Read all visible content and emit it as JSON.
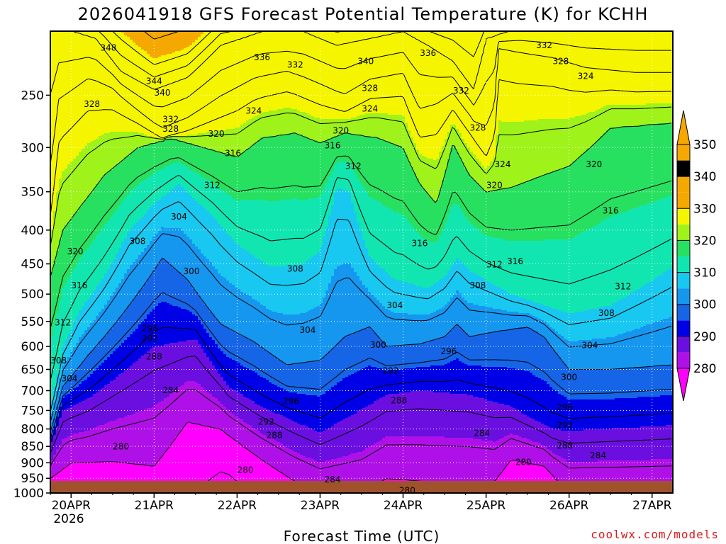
{
  "chart_data": {
    "type": "heatmap",
    "title": "2026041918 GFS Forecast Potential Temperature (K) for KCHH",
    "xlabel": "Forecast Time (UTC)",
    "ylabel": "",
    "x_ticks": [
      "20APR",
      "21APR",
      "22APR",
      "23APR",
      "24APR",
      "25APR",
      "26APR",
      "27APR"
    ],
    "x_year_label": "2026",
    "y_ticks": [
      250,
      300,
      350,
      400,
      450,
      500,
      550,
      600,
      650,
      700,
      750,
      800,
      850,
      900,
      950,
      1000
    ],
    "y_scale": "log",
    "ylim": [
      1000,
      200
    ],
    "xlim_days": [
      19.75,
      27.25
    ],
    "colorbar": {
      "levels": [
        280,
        290,
        300,
        310,
        320,
        330,
        340,
        350
      ],
      "colors": [
        "#ff00ff",
        "#b010e8",
        "#6a0fe0",
        "#0000e6",
        "#1565e6",
        "#1597f0",
        "#18c8f0",
        "#12e6b0",
        "#28e060",
        "#9ff21a",
        "#f5f500",
        "#f5a800"
      ],
      "extend": "both"
    },
    "contour_interval": 4,
    "contour_labels": [
      {
        "value": 348,
        "day": 20.45,
        "p": 212
      },
      {
        "value": 344,
        "day": 21.0,
        "p": 238
      },
      {
        "value": 340,
        "day": 21.1,
        "p": 248
      },
      {
        "value": 336,
        "day": 22.3,
        "p": 219
      },
      {
        "value": 332,
        "day": 22.7,
        "p": 225
      },
      {
        "value": 340,
        "day": 23.55,
        "p": 222
      },
      {
        "value": 336,
        "day": 24.3,
        "p": 216
      },
      {
        "value": 332,
        "day": 25.7,
        "p": 210
      },
      {
        "value": 328,
        "day": 25.9,
        "p": 222
      },
      {
        "value": 324,
        "day": 26.2,
        "p": 234
      },
      {
        "value": 328,
        "day": 20.25,
        "p": 258
      },
      {
        "value": 332,
        "day": 21.2,
        "p": 272
      },
      {
        "value": 328,
        "day": 21.2,
        "p": 281
      },
      {
        "value": 324,
        "day": 22.2,
        "p": 264
      },
      {
        "value": 328,
        "day": 23.6,
        "p": 244
      },
      {
        "value": 324,
        "day": 23.6,
        "p": 262
      },
      {
        "value": 332,
        "day": 24.7,
        "p": 246
      },
      {
        "value": 328,
        "day": 24.9,
        "p": 280
      },
      {
        "value": 320,
        "day": 21.75,
        "p": 286
      },
      {
        "value": 320,
        "day": 23.25,
        "p": 283
      },
      {
        "value": 316,
        "day": 21.95,
        "p": 306
      },
      {
        "value": 316,
        "day": 23.15,
        "p": 298
      },
      {
        "value": 312,
        "day": 23.4,
        "p": 320
      },
      {
        "value": 324,
        "day": 25.2,
        "p": 318
      },
      {
        "value": 320,
        "day": 25.1,
        "p": 342
      },
      {
        "value": 320,
        "day": 26.3,
        "p": 318
      },
      {
        "value": 312,
        "day": 21.7,
        "p": 342
      },
      {
        "value": 304,
        "day": 21.3,
        "p": 382
      },
      {
        "value": 316,
        "day": 26.5,
        "p": 374
      },
      {
        "value": 308,
        "day": 20.8,
        "p": 416
      },
      {
        "value": 320,
        "day": 20.05,
        "p": 431
      },
      {
        "value": 316,
        "day": 24.2,
        "p": 419
      },
      {
        "value": 300,
        "day": 21.45,
        "p": 462
      },
      {
        "value": 308,
        "day": 22.7,
        "p": 458
      },
      {
        "value": 312,
        "day": 25.1,
        "p": 451
      },
      {
        "value": 316,
        "day": 25.35,
        "p": 446
      },
      {
        "value": 316,
        "day": 20.1,
        "p": 485
      },
      {
        "value": 308,
        "day": 24.9,
        "p": 485
      },
      {
        "value": 312,
        "day": 26.65,
        "p": 487
      },
      {
        "value": 304,
        "day": 23.9,
        "p": 520
      },
      {
        "value": 312,
        "day": 19.9,
        "p": 552
      },
      {
        "value": 308,
        "day": 26.45,
        "p": 534
      },
      {
        "value": 296,
        "day": 20.95,
        "p": 564
      },
      {
        "value": 304,
        "day": 22.85,
        "p": 567
      },
      {
        "value": 292,
        "day": 20.95,
        "p": 584
      },
      {
        "value": 300,
        "day": 23.7,
        "p": 597
      },
      {
        "value": 304,
        "day": 26.25,
        "p": 598
      },
      {
        "value": 288,
        "day": 21.0,
        "p": 622
      },
      {
        "value": 296,
        "day": 24.55,
        "p": 610
      },
      {
        "value": 308,
        "day": 19.85,
        "p": 630
      },
      {
        "value": 292,
        "day": 23.85,
        "p": 653
      },
      {
        "value": 300,
        "day": 26.0,
        "p": 668
      },
      {
        "value": 304,
        "day": 19.98,
        "p": 671
      },
      {
        "value": 284,
        "day": 21.2,
        "p": 699
      },
      {
        "value": 296,
        "day": 22.65,
        "p": 726
      },
      {
        "value": 288,
        "day": 23.95,
        "p": 725
      },
      {
        "value": 296,
        "day": 25.95,
        "p": 742
      },
      {
        "value": 292,
        "day": 22.35,
        "p": 780
      },
      {
        "value": 292,
        "day": 25.95,
        "p": 790
      },
      {
        "value": 288,
        "day": 22.45,
        "p": 818
      },
      {
        "value": 284,
        "day": 24.95,
        "p": 812
      },
      {
        "value": 288,
        "day": 25.95,
        "p": 848
      },
      {
        "value": 280,
        "day": 20.6,
        "p": 851
      },
      {
        "value": 284,
        "day": 26.35,
        "p": 877
      },
      {
        "value": 280,
        "day": 22.1,
        "p": 923
      },
      {
        "value": 280,
        "day": 25.45,
        "p": 898
      },
      {
        "value": 284,
        "day": 23.15,
        "p": 954
      },
      {
        "value": 280,
        "day": 24.05,
        "p": 991
      }
    ]
  },
  "credit": "coolwx.com/models"
}
